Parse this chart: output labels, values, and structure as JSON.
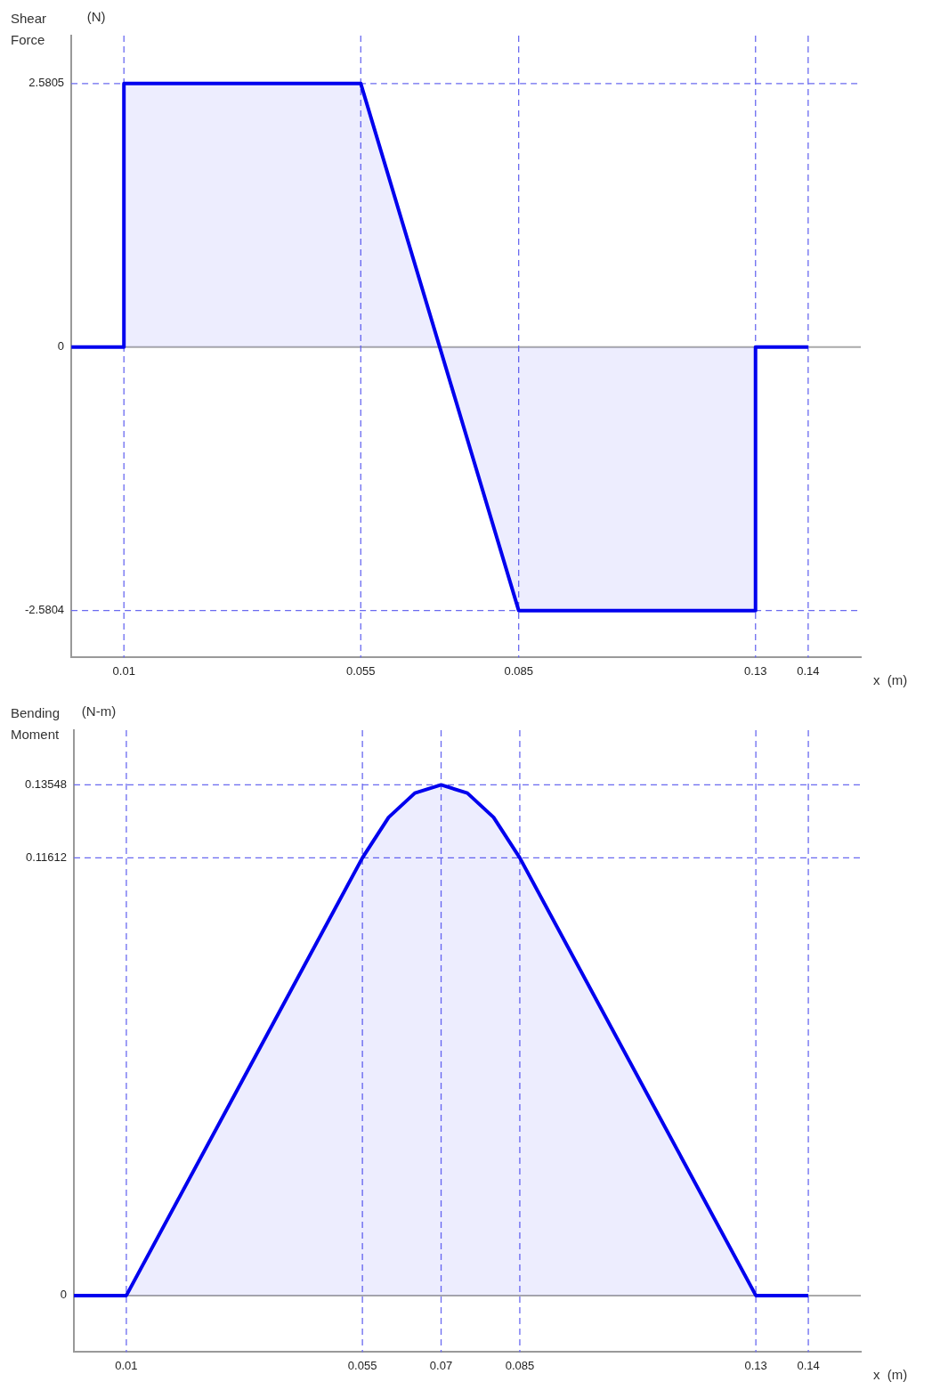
{
  "chart_data": [
    {
      "type": "area",
      "ylabel": "Shear Force",
      "xlabel": "x  (m)",
      "annotations": [
        "(N)"
      ],
      "x": [
        0,
        0.01,
        0.01,
        0.055,
        0.085,
        0.13,
        0.13,
        0.14
      ],
      "series": [
        {
          "color": "#0000ee",
          "values": [
            0,
            0,
            2.5805,
            2.5805,
            -2.5804,
            -2.5804,
            0,
            0
          ]
        }
      ],
      "xlim": [
        0,
        0.15
      ],
      "xticks": [
        0.01,
        0.055,
        0.085,
        0.13,
        0.14
      ],
      "ylim": [
        -3.04,
        3.05
      ],
      "yticks": [
        -2.5804,
        0,
        2.5805
      ],
      "grid": false,
      "legend": false,
      "marker": "none",
      "line_style": "solid",
      "ref_lines": [
        {
          "axis": "y",
          "value": 0,
          "color": "#aaaaaa",
          "line_style": "solid"
        },
        {
          "axis": "y",
          "value": 2.5805,
          "color": "#6a6af0",
          "line_style": "dashed"
        },
        {
          "axis": "y",
          "value": -2.5804,
          "color": "#6a6af0",
          "line_style": "dashed"
        },
        {
          "axis": "x",
          "value": 0.01,
          "color": "#6a6af0",
          "line_style": "dashed"
        },
        {
          "axis": "x",
          "value": 0.055,
          "color": "#6a6af0",
          "line_style": "dashed"
        },
        {
          "axis": "x",
          "value": 0.085,
          "color": "#6a6af0",
          "line_style": "dashed"
        },
        {
          "axis": "x",
          "value": 0.13,
          "color": "#6a6af0",
          "line_style": "dashed"
        },
        {
          "axis": "x",
          "value": 0.14,
          "color": "#6a6af0",
          "line_style": "dashed"
        }
      ]
    },
    {
      "type": "area",
      "ylabel": "Bending Moment",
      "xlabel": "x  (m)",
      "annotations": [
        "(N-m)"
      ],
      "x": [
        0,
        0.01,
        0.055,
        0.06,
        0.065,
        0.07,
        0.075,
        0.08,
        0.085,
        0.13,
        0.14
      ],
      "series": [
        {
          "color": "#0000ee",
          "values": [
            0,
            0,
            0.11612,
            0.12687,
            0.13332,
            0.13548,
            0.13332,
            0.12687,
            0.11612,
            0,
            0
          ]
        }
      ],
      "xlim": [
        0,
        0.15
      ],
      "xticks": [
        0.01,
        0.055,
        0.07,
        0.085,
        0.13,
        0.14
      ],
      "ylim": [
        -0.015,
        0.15
      ],
      "yticks": [
        0,
        0.11612,
        0.13548
      ],
      "grid": false,
      "legend": false,
      "marker": "none",
      "line_style": "solid",
      "ref_lines": [
        {
          "axis": "y",
          "value": 0,
          "color": "#aaaaaa",
          "line_style": "solid"
        },
        {
          "axis": "y",
          "value": 0.13548,
          "color": "#6a6af0",
          "line_style": "dashed"
        },
        {
          "axis": "y",
          "value": 0.11612,
          "color": "#6a6af0",
          "line_style": "dashed"
        },
        {
          "axis": "x",
          "value": 0.01,
          "color": "#6a6af0",
          "line_style": "dashed"
        },
        {
          "axis": "x",
          "value": 0.055,
          "color": "#6a6af0",
          "line_style": "dashed"
        },
        {
          "axis": "x",
          "value": 0.07,
          "color": "#6a6af0",
          "line_style": "dashed"
        },
        {
          "axis": "x",
          "value": 0.085,
          "color": "#6a6af0",
          "line_style": "dashed"
        },
        {
          "axis": "x",
          "value": 0.13,
          "color": "#6a6af0",
          "line_style": "dashed"
        },
        {
          "axis": "x",
          "value": 0.14,
          "color": "#6a6af0",
          "line_style": "dashed"
        }
      ]
    }
  ]
}
